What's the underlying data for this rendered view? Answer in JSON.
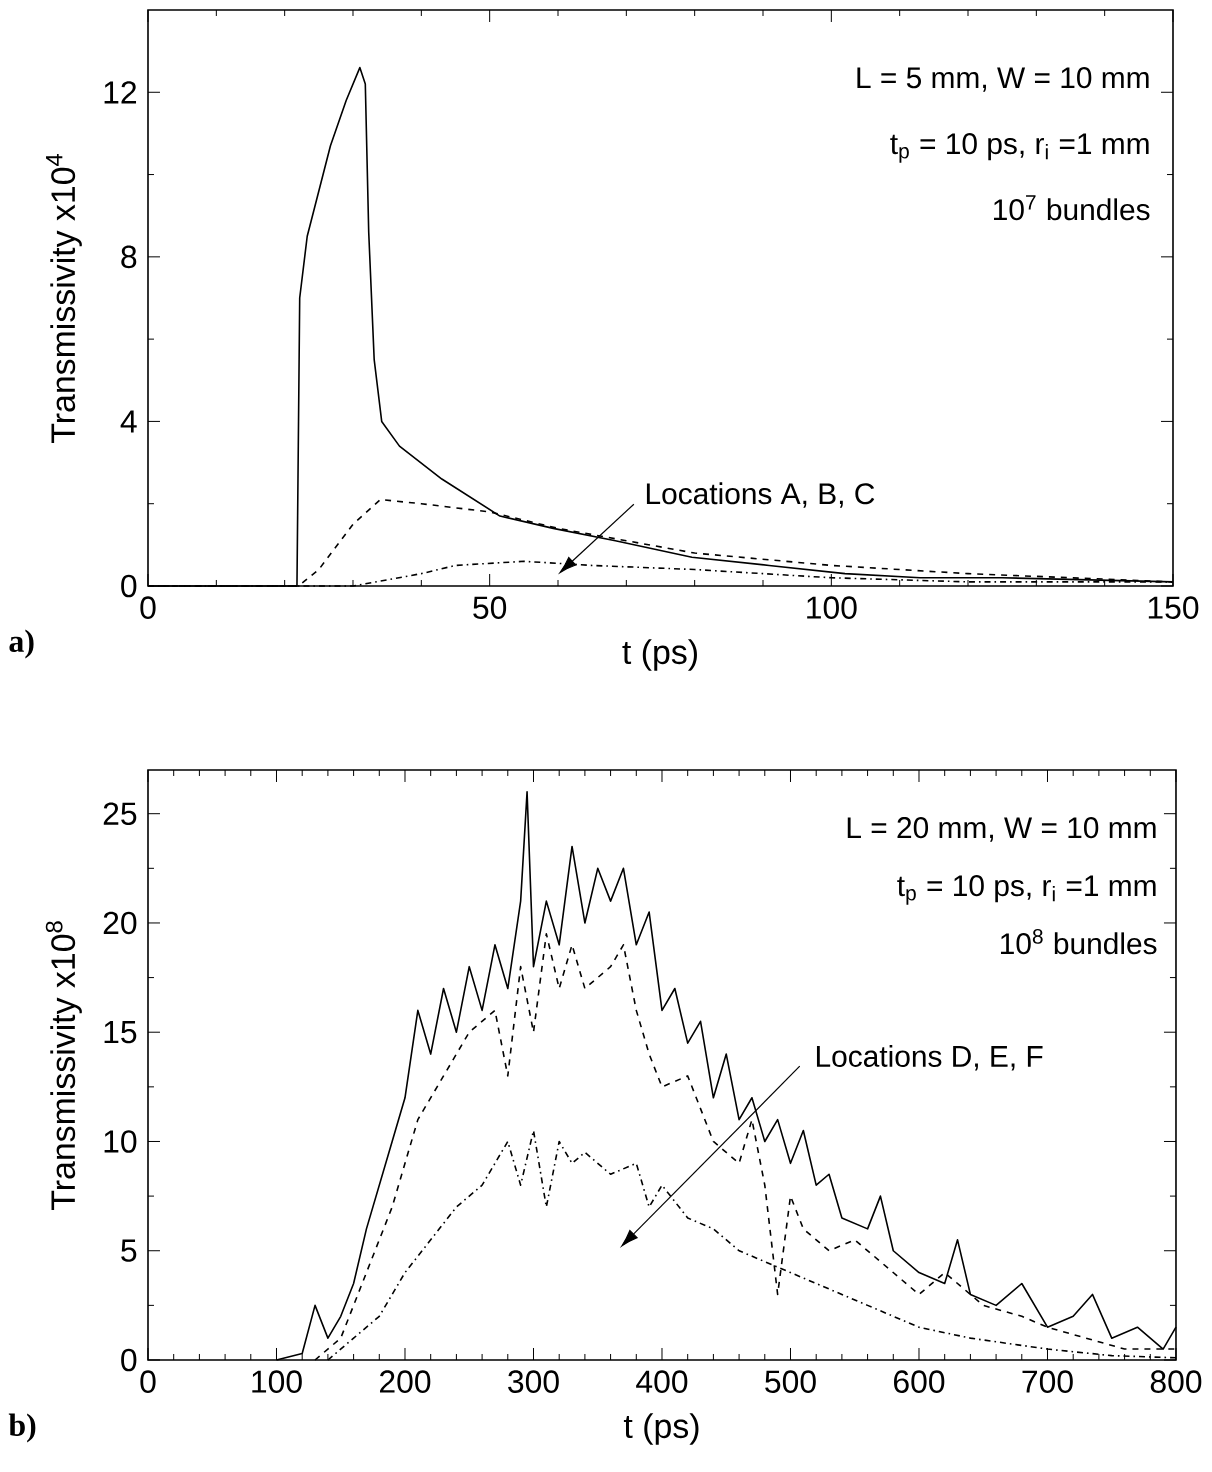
{
  "chart_data": [
    {
      "type": "line",
      "title": "a)",
      "xlabel": "t (ps)",
      "ylabel": "Transmissivity x10$^{4}$",
      "xlim": [
        0,
        150
      ],
      "ylim": [
        0,
        14
      ],
      "xticks": [
        0,
        50,
        100,
        150
      ],
      "yticks": [
        0,
        4,
        8,
        12
      ],
      "annotations": [
        "L = 5 mm, W = 10 mm",
        "t$_{p}$ = 10 ps, r$_{i}$ =1 mm",
        "10$^{7}$ bundles",
        "Locations A, B, C"
      ],
      "series": [
        {
          "color": "#000000",
          "line_style": "solid",
          "x": [
            0,
            21.8,
            22.2,
            23.3,
            26.7,
            29,
            31,
            31.8,
            32.3,
            33.1,
            34.2,
            36.8,
            43,
            51.5,
            59.3,
            68.4,
            79.6,
            90.9,
            102,
            113,
            125,
            150
          ],
          "values": [
            0,
            0,
            7,
            8.5,
            10.7,
            11.8,
            12.6,
            12.2,
            8.6,
            5.5,
            4.0,
            3.4,
            2.6,
            1.7,
            1.4,
            1.1,
            0.7,
            0.5,
            0.3,
            0.2,
            0.2,
            0.1
          ]
        },
        {
          "color": "#000000",
          "line_style": "dashed",
          "x": [
            0,
            22,
            25,
            30,
            34,
            40,
            50,
            60,
            70,
            80,
            100,
            120,
            150
          ],
          "values": [
            0,
            0,
            0.4,
            1.5,
            2.1,
            2.0,
            1.8,
            1.4,
            1.1,
            0.8,
            0.5,
            0.3,
            0.1
          ]
        },
        {
          "color": "#000000",
          "line_style": "dashdot",
          "x": [
            0,
            30,
            40,
            45,
            55,
            65,
            80,
            100,
            120,
            150
          ],
          "values": [
            0,
            0,
            0.3,
            0.5,
            0.6,
            0.5,
            0.4,
            0.2,
            0.1,
            0.1
          ]
        }
      ]
    },
    {
      "type": "line",
      "title": "b)",
      "xlabel": "t (ps)",
      "ylabel": "Transmissivity x10$^{8}$",
      "xlim": [
        0,
        800
      ],
      "ylim": [
        0,
        27
      ],
      "xticks": [
        0,
        100,
        200,
        300,
        400,
        500,
        600,
        700,
        800
      ],
      "yticks": [
        0,
        5,
        10,
        15,
        20,
        25
      ],
      "annotations": [
        "L = 20 mm, W = 10 mm",
        "t$_{p}$ = 10 ps, r$_{i}$ =1 mm",
        "10$^{8}$ bundles",
        "Locations D, E, F"
      ],
      "series": [
        {
          "color": "#000000",
          "line_style": "solid",
          "x": [
            100,
            120,
            130,
            140,
            150,
            160,
            170,
            180,
            190,
            200,
            210,
            220,
            230,
            240,
            250,
            260,
            270,
            280,
            290,
            295,
            300,
            310,
            320,
            330,
            340,
            350,
            360,
            370,
            380,
            390,
            400,
            410,
            420,
            430,
            440,
            450,
            460,
            470,
            480,
            490,
            500,
            510,
            520,
            530,
            540,
            560,
            570,
            580,
            600,
            620,
            630,
            640,
            660,
            680,
            700,
            720,
            735,
            750,
            770,
            790,
            800
          ],
          "values": [
            0,
            0.3,
            2.5,
            1,
            2,
            3.5,
            6,
            8,
            10,
            12,
            16,
            14,
            17,
            15,
            18,
            16,
            19,
            17,
            21,
            26,
            18,
            21,
            19,
            23.5,
            20,
            22.5,
            21,
            22.5,
            19,
            20.5,
            16,
            17,
            14.5,
            15.5,
            12,
            14,
            11,
            12,
            10,
            11,
            9,
            10.5,
            8,
            8.5,
            6.5,
            6,
            7.5,
            5,
            4,
            3.5,
            5.5,
            3,
            2.5,
            3.5,
            1.5,
            2,
            3,
            1,
            1.5,
            0.5,
            1.5
          ]
        },
        {
          "color": "#000000",
          "line_style": "dashed",
          "x": [
            130,
            150,
            170,
            190,
            210,
            230,
            250,
            270,
            280,
            290,
            300,
            310,
            320,
            330,
            340,
            360,
            370,
            380,
            390,
            400,
            420,
            440,
            460,
            470,
            480,
            490,
            500,
            510,
            530,
            550,
            570,
            600,
            620,
            650,
            680,
            700,
            730,
            760,
            800
          ],
          "values": [
            0,
            1,
            4,
            7,
            11,
            13,
            15,
            16,
            13,
            18,
            15,
            19.5,
            17,
            19,
            17,
            18,
            19,
            16,
            14,
            12.5,
            13,
            10,
            9,
            11,
            8,
            3,
            7.5,
            6,
            5,
            5.5,
            4.5,
            3,
            4,
            2.5,
            2,
            1.5,
            1,
            0.5,
            0.5
          ]
        },
        {
          "color": "#000000",
          "line_style": "dashdot",
          "x": [
            140,
            160,
            180,
            200,
            220,
            240,
            260,
            280,
            290,
            300,
            310,
            320,
            330,
            340,
            360,
            380,
            390,
            400,
            420,
            440,
            460,
            480,
            500,
            520,
            540,
            560,
            580,
            600,
            640,
            700,
            750,
            800
          ],
          "values": [
            0,
            1,
            2,
            4,
            5.5,
            7,
            8,
            10,
            8,
            10.5,
            7,
            10,
            9,
            9.5,
            8.5,
            9,
            7,
            8,
            6.5,
            6,
            5,
            4.5,
            4,
            3.5,
            3,
            2.5,
            2,
            1.5,
            1,
            0.5,
            0.2,
            0.1
          ]
        }
      ]
    }
  ]
}
